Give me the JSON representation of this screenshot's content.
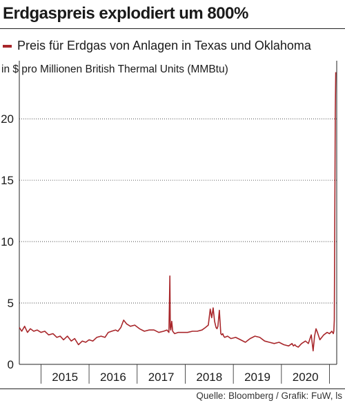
{
  "chart_data": {
    "type": "line",
    "title": "Erdgaspreis explodiert um 800%",
    "subtitle": "",
    "ylabel": "in $ pro Millionen British Thermal Units (MMBtu)",
    "xlabel": "",
    "ylim": [
      0,
      24
    ],
    "yticks": [
      0,
      5,
      10,
      15,
      20
    ],
    "ytick_labels": [
      "0",
      "5",
      "10",
      "15",
      "20"
    ],
    "xlim": [
      2014.55,
      2021.15
    ],
    "year_labels": [
      "2015",
      "2016",
      "2017",
      "2018",
      "2019",
      "2020"
    ],
    "grid": "horizontal",
    "series": [
      {
        "name": "Preis für Erdgas von Anlagen in Texas und Oklahoma",
        "color": "#a8262a",
        "x": [
          2014.55,
          2014.6,
          2014.66,
          2014.72,
          2014.78,
          2014.85,
          2014.92,
          2015.0,
          2015.08,
          2015.16,
          2015.25,
          2015.33,
          2015.4,
          2015.47,
          2015.55,
          2015.63,
          2015.7,
          2015.78,
          2015.86,
          2015.93,
          2016.0,
          2016.08,
          2016.16,
          2016.25,
          2016.33,
          2016.4,
          2016.47,
          2016.55,
          2016.6,
          2016.66,
          2016.72,
          2016.78,
          2016.86,
          2016.95,
          2017.05,
          2017.15,
          2017.25,
          2017.35,
          2017.45,
          2017.55,
          2017.62,
          2017.66,
          2017.68,
          2017.69,
          2017.7,
          2017.72,
          2017.74,
          2017.78,
          2017.85,
          2017.95,
          2018.05,
          2018.15,
          2018.25,
          2018.35,
          2018.42,
          2018.48,
          2018.52,
          2018.55,
          2018.58,
          2018.61,
          2018.64,
          2018.66,
          2018.68,
          2018.71,
          2018.74,
          2018.76,
          2018.78,
          2018.8,
          2018.82,
          2018.88,
          2018.95,
          2019.05,
          2019.15,
          2019.25,
          2019.35,
          2019.45,
          2019.55,
          2019.65,
          2019.75,
          2019.85,
          2019.95,
          2020.05,
          2020.15,
          2020.22,
          2020.25,
          2020.28,
          2020.3,
          2020.35,
          2020.42,
          2020.5,
          2020.56,
          2020.62,
          2020.66,
          2020.69,
          2020.72,
          2020.75,
          2020.8,
          2020.88,
          2020.95,
          2021.0,
          2021.05,
          2021.08,
          2021.09,
          2021.1,
          2021.11,
          2021.12,
          2021.13
        ],
        "values": [
          3.0,
          2.7,
          3.1,
          2.6,
          2.9,
          2.7,
          2.8,
          2.6,
          2.7,
          2.4,
          2.5,
          2.2,
          2.3,
          2.0,
          2.3,
          1.9,
          2.1,
          1.6,
          1.9,
          1.8,
          2.0,
          1.9,
          2.2,
          2.3,
          2.2,
          2.6,
          2.7,
          2.8,
          2.7,
          3.0,
          3.6,
          3.3,
          3.1,
          3.2,
          2.9,
          2.7,
          2.8,
          2.8,
          2.6,
          2.7,
          2.8,
          2.6,
          7.2,
          3.0,
          2.8,
          3.5,
          2.7,
          2.5,
          2.6,
          2.6,
          2.6,
          2.7,
          2.7,
          2.8,
          3.0,
          3.2,
          4.5,
          3.8,
          4.6,
          3.5,
          3.0,
          2.9,
          3.1,
          4.4,
          2.5,
          2.4,
          2.5,
          2.3,
          2.2,
          2.3,
          2.1,
          2.2,
          2.0,
          1.8,
          2.1,
          2.3,
          2.2,
          1.9,
          1.8,
          1.7,
          1.8,
          1.6,
          1.5,
          1.7,
          1.5,
          1.6,
          1.5,
          1.4,
          1.7,
          1.9,
          1.7,
          2.4,
          1.1,
          2.3,
          2.9,
          2.6,
          2.0,
          2.4,
          2.6,
          2.5,
          2.7,
          2.5,
          2.7,
          3.6,
          12.0,
          20.5,
          23.8
        ]
      }
    ]
  },
  "source": "Quelle: Bloomberg / Grafik: FuW, ls"
}
